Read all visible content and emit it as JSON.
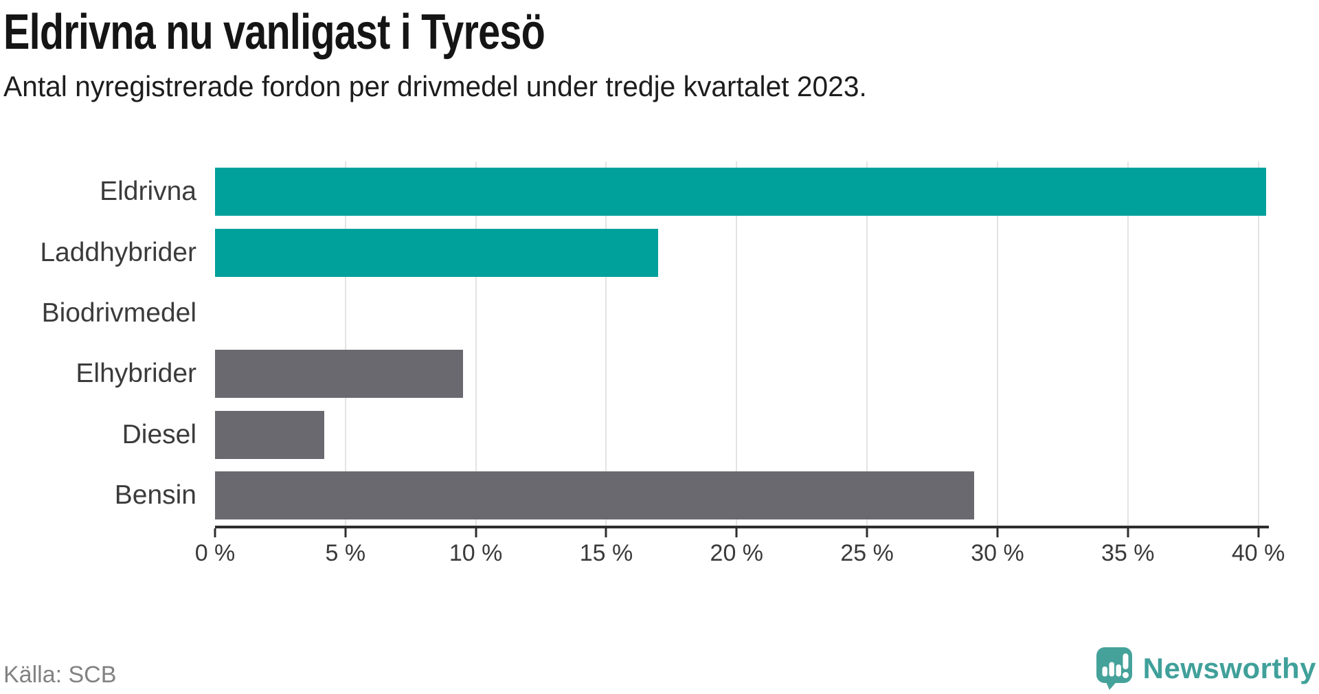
{
  "header": {
    "title": "Eldrivna nu vanligast i Tyresö",
    "subtitle": "Antal nyregistrerade fordon per drivmedel under tredje kvartalet 2023."
  },
  "chart_data": {
    "type": "bar",
    "orientation": "horizontal",
    "title": "Eldrivna nu vanligast i Tyresö",
    "subtitle": "Antal nyregistrerade fordon per drivmedel under tredje kvartalet 2023.",
    "categories": [
      "Eldrivna",
      "Laddhybrider",
      "Biodrivmedel",
      "Elhybrider",
      "Diesel",
      "Bensin"
    ],
    "values": [
      40.3,
      17.0,
      0,
      9.5,
      4.2,
      29.1
    ],
    "unit": "%",
    "bar_colors": [
      "#00a09b",
      "#00a09b",
      "#00a09b",
      "#6b6970",
      "#6b6970",
      "#6b6970"
    ],
    "xlim": [
      0,
      40.3
    ],
    "xticks": [
      0,
      5,
      10,
      15,
      20,
      25,
      30,
      35,
      40
    ],
    "xtick_labels": [
      "0 %",
      "5 %",
      "10 %",
      "15 %",
      "20 %",
      "25 %",
      "30 %",
      "35 %",
      "40 %"
    ],
    "grid": "vertical-only",
    "legend": "none",
    "ylabel": "",
    "xlabel": ""
  },
  "footer": {
    "source": "Källa: SCB",
    "brand": "Newsworthy"
  },
  "colors": {
    "accent_teal": "#00a09b",
    "neutral_gray": "#6b6970",
    "brand_teal": "#40a09a",
    "grid": "#e3e3e3",
    "axis": "#2e2e2e",
    "label": "#3b3b3b",
    "muted": "#828282",
    "background": "#ffffff"
  }
}
